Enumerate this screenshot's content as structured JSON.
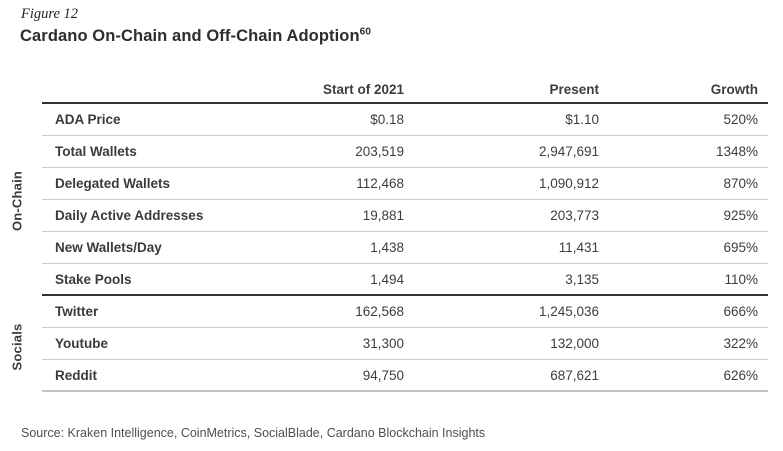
{
  "figure_label": "Figure 12",
  "title": "Cardano On-Chain and Off-Chain Adoption",
  "title_superscript": "60",
  "source": "Source: Kraken Intelligence, CoinMetrics, SocialBlade, Cardano Blockchain Insights",
  "colors": {
    "accent_purple": "#5d4ee8",
    "text_dark": "#2d2d2d",
    "thin_rule": "#cbcbcb",
    "thick_rule": "#333333"
  },
  "table": {
    "columns": [
      "Start of 2021",
      "Present",
      "Growth"
    ],
    "groups": [
      {
        "label": "On-Chain",
        "rows": [
          {
            "metric": "ADA Price",
            "start": "$0.18",
            "present": "$1.10",
            "growth": "520%"
          },
          {
            "metric": "Total Wallets",
            "start": "203,519",
            "present": "2,947,691",
            "growth": "1348%"
          },
          {
            "metric": "Delegated Wallets",
            "start": "112,468",
            "present": "1,090,912",
            "growth": "870%"
          },
          {
            "metric": "Daily Active Addresses",
            "start": "19,881",
            "present": "203,773",
            "growth": "925%"
          },
          {
            "metric": "New Wallets/Day",
            "start": "1,438",
            "present": "11,431",
            "growth": "695%"
          },
          {
            "metric": "Stake Pools",
            "start": "1,494",
            "present": "3,135",
            "growth": "110%"
          }
        ]
      },
      {
        "label": "Socials",
        "rows": [
          {
            "metric": "Twitter",
            "start": "162,568",
            "present": "1,245,036",
            "growth": "666%"
          },
          {
            "metric": "Youtube",
            "start": "31,300",
            "present": "132,000",
            "growth": "322%"
          },
          {
            "metric": "Reddit",
            "start": "94,750",
            "present": "687,621",
            "growth": "626%"
          }
        ]
      }
    ]
  }
}
